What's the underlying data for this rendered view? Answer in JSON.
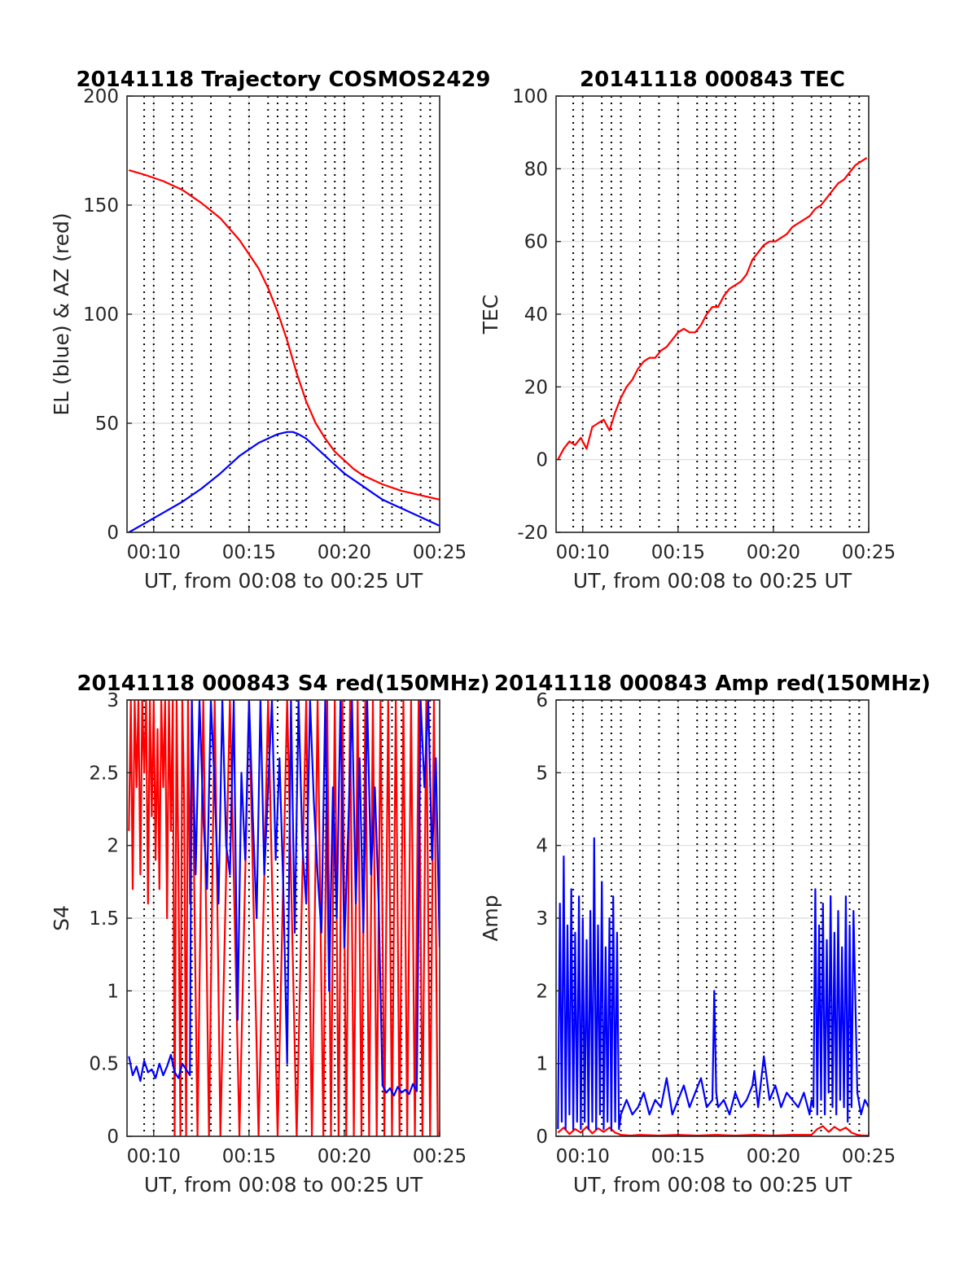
{
  "colors": {
    "blue": "#0000ff",
    "red": "#ff0000"
  },
  "chart_data": [
    {
      "type": "line",
      "title": "20141118 Trajectory COSMOS2429",
      "xlabel": "UT, from 00:08 to 00:25 UT",
      "ylabel": "EL (blue) & AZ (red)",
      "xlim": [
        8.6,
        25.0
      ],
      "ylim": [
        0,
        200
      ],
      "xticks": [
        10,
        15,
        20,
        25
      ],
      "xtick_labels": [
        "00:10",
        "00:15",
        "00:20",
        "00:25"
      ],
      "yticks": [
        0,
        50,
        100,
        150,
        200
      ],
      "ytick_labels": [
        "0",
        "50",
        "100",
        "150",
        "200"
      ],
      "dotted_vlines": [
        9.5,
        10.0,
        11.0,
        11.5,
        12.0,
        13.0,
        14.0,
        15.0,
        16.0,
        16.5,
        17.0,
        17.5,
        18.0,
        19.0,
        19.5,
        20.0,
        21.0,
        22.0,
        22.5,
        23.0,
        24.0,
        24.5
      ],
      "series": [
        {
          "color": "blue",
          "x": [
            8.7,
            9.5,
            10.5,
            11.5,
            12.5,
            13.5,
            14.5,
            15.5,
            16.5,
            17.0,
            17.3,
            17.6,
            18.0,
            18.5,
            19.0,
            19.5,
            20.0,
            20.5,
            21.0,
            21.5,
            22.0,
            22.5,
            23.0,
            23.5,
            24.0,
            24.5,
            25.0
          ],
          "y": [
            0,
            4,
            9,
            14,
            20,
            27,
            35,
            41,
            45,
            46,
            46,
            45,
            43,
            39,
            35,
            31,
            27,
            24,
            21,
            18,
            15,
            13,
            11,
            9,
            7,
            5,
            3
          ]
        },
        {
          "color": "red",
          "x": [
            8.7,
            9.5,
            10.5,
            11.5,
            12.5,
            13.5,
            14.5,
            15.5,
            16.0,
            16.5,
            17.0,
            17.5,
            18.0,
            18.5,
            19.0,
            19.5,
            20.0,
            20.5,
            21.0,
            22.0,
            23.0,
            24.0,
            25.0
          ],
          "y": [
            166,
            164,
            161,
            157,
            151,
            144,
            134,
            121,
            112,
            101,
            88,
            73,
            60,
            50,
            43,
            37,
            33,
            29,
            26,
            22,
            19,
            17,
            15
          ]
        }
      ]
    },
    {
      "type": "line",
      "title": "20141118 000843 TEC",
      "xlabel": "UT, from 00:08 to 00:25 UT",
      "ylabel": "TEC",
      "xlim": [
        8.6,
        25.0
      ],
      "ylim": [
        -20,
        100
      ],
      "xticks": [
        10,
        15,
        20,
        25
      ],
      "xtick_labels": [
        "00:10",
        "00:15",
        "00:20",
        "00:25"
      ],
      "yticks": [
        -20,
        0,
        20,
        40,
        60,
        80,
        100
      ],
      "ytick_labels": [
        "-20",
        "0",
        "20",
        "40",
        "60",
        "80",
        "100"
      ],
      "dotted_vlines": [
        9.5,
        10.0,
        11.0,
        11.5,
        12.0,
        13.0,
        14.0,
        15.0,
        16.0,
        16.5,
        17.0,
        17.5,
        18.0,
        19.0,
        19.5,
        20.0,
        21.0,
        22.0,
        22.5,
        23.0,
        24.0,
        24.5
      ],
      "series": [
        {
          "color": "red",
          "x": [
            8.7,
            9.0,
            9.3,
            9.6,
            9.9,
            10.2,
            10.5,
            10.8,
            11.1,
            11.4,
            11.7,
            12.0,
            12.3,
            12.6,
            12.9,
            13.2,
            13.5,
            13.8,
            14.1,
            14.4,
            14.7,
            15.0,
            15.3,
            15.6,
            15.9,
            16.2,
            16.5,
            16.8,
            17.1,
            17.4,
            17.7,
            18.0,
            18.3,
            18.6,
            18.9,
            19.2,
            19.5,
            19.8,
            20.1,
            20.4,
            20.7,
            21.0,
            21.3,
            21.6,
            21.9,
            22.2,
            22.5,
            22.8,
            23.1,
            23.4,
            23.7,
            24.0,
            24.3,
            24.6,
            24.9
          ],
          "y": [
            0,
            3,
            5,
            4,
            6,
            3,
            9,
            10,
            11,
            8,
            13,
            17,
            20,
            22,
            25,
            27,
            28,
            28,
            30,
            31,
            33,
            35,
            36,
            35,
            35,
            37,
            40,
            42,
            42,
            45,
            47,
            48,
            49,
            51,
            55,
            57,
            59,
            60,
            60,
            61,
            62,
            64,
            65,
            66,
            67,
            69,
            70,
            72,
            74,
            76,
            77,
            79,
            81,
            82,
            83
          ]
        }
      ]
    },
    {
      "type": "line",
      "title": "20141118 000843 S4 red(150MHz)",
      "xlabel": "UT, from 00:08 to 00:25 UT",
      "ylabel": "S4",
      "xlim": [
        8.6,
        25.0
      ],
      "ylim": [
        0,
        3
      ],
      "xticks": [
        10,
        15,
        20,
        25
      ],
      "xtick_labels": [
        "00:10",
        "00:15",
        "00:20",
        "00:25"
      ],
      "yticks": [
        0,
        0.5,
        1,
        1.5,
        2,
        2.5,
        3
      ],
      "ytick_labels": [
        "0",
        "0.5",
        "1",
        "1.5",
        "2",
        "2.5",
        "3"
      ],
      "dotted_vlines": [
        9.5,
        10.0,
        11.0,
        11.5,
        12.0,
        13.0,
        14.0,
        15.0,
        16.0,
        16.5,
        17.0,
        17.5,
        18.0,
        19.0,
        19.5,
        20.0,
        21.0,
        22.0,
        22.5,
        23.0,
        24.0,
        24.5
      ],
      "series": [
        {
          "color": "red",
          "x": [
            8.7,
            8.8,
            8.9,
            9.0,
            9.1,
            9.2,
            9.3,
            9.4,
            9.5,
            9.6,
            9.7,
            9.8,
            9.9,
            10.0,
            10.1,
            10.2,
            10.3,
            10.4,
            10.5,
            10.6,
            10.7,
            10.8,
            10.9,
            11.0,
            11.1,
            11.2,
            11.3,
            11.4,
            11.5,
            11.6,
            11.7,
            11.8,
            11.9,
            12.0,
            12.3,
            12.6,
            12.9,
            13.2,
            13.5,
            14.0,
            14.5,
            15.0,
            15.5,
            16.0,
            16.5,
            17.0,
            17.5,
            18.0,
            18.3,
            18.6,
            18.9,
            19.1,
            19.3,
            19.5,
            19.7,
            19.9,
            20.1,
            20.3,
            20.5,
            20.7,
            20.9,
            21.1,
            21.3,
            21.5,
            21.7,
            21.9,
            22.1,
            22.3,
            22.5,
            22.7,
            22.9,
            23.1,
            23.3,
            23.5,
            23.7,
            23.9,
            24.1,
            24.3,
            24.5,
            24.7,
            24.9
          ],
          "y": [
            2.1,
            3.0,
            1.7,
            3.0,
            2.4,
            3.0,
            1.8,
            3.0,
            2.5,
            3.0,
            1.6,
            3.0,
            2.2,
            3.0,
            1.9,
            2.8,
            1.7,
            3.0,
            2.4,
            3.0,
            1.5,
            3.0,
            2.1,
            3.0,
            0.0,
            3.0,
            1.8,
            0.0,
            3.0,
            2.3,
            0.0,
            3.0,
            1.6,
            3.0,
            0.0,
            3.0,
            0.0,
            3.0,
            0.0,
            3.0,
            0.0,
            3.0,
            0.0,
            3.0,
            0.0,
            3.0,
            0.0,
            3.0,
            0.0,
            3.0,
            0.0,
            3.0,
            0.0,
            3.0,
            0.0,
            3.0,
            0.0,
            3.0,
            0.0,
            3.0,
            0.0,
            3.0,
            0.0,
            3.0,
            0.0,
            3.0,
            0.0,
            3.0,
            0.0,
            3.0,
            0.0,
            3.0,
            0.0,
            3.0,
            0.0,
            3.0,
            0.0,
            3.0,
            0.0,
            3.0,
            0.0
          ]
        },
        {
          "color": "blue",
          "x": [
            8.7,
            8.9,
            9.1,
            9.3,
            9.5,
            9.7,
            9.9,
            10.1,
            10.3,
            10.5,
            10.7,
            10.9,
            11.1,
            11.3,
            11.5,
            11.7,
            11.9,
            12.0,
            12.2,
            12.4,
            12.6,
            12.8,
            13.0,
            13.2,
            13.4,
            13.6,
            13.8,
            14.0,
            14.2,
            14.4,
            14.6,
            14.8,
            15.0,
            15.2,
            15.4,
            15.6,
            15.8,
            16.0,
            16.2,
            16.4,
            16.6,
            16.8,
            17.0,
            17.2,
            17.4,
            17.6,
            17.8,
            18.0,
            18.2,
            18.4,
            18.6,
            18.8,
            19.0,
            19.2,
            19.4,
            19.6,
            19.8,
            20.0,
            20.2,
            20.4,
            20.6,
            20.8,
            21.0,
            21.2,
            21.4,
            21.6,
            21.8,
            22.0,
            22.2,
            22.4,
            22.6,
            22.8,
            23.0,
            23.2,
            23.4,
            23.6,
            23.8,
            24.0,
            24.2,
            24.4,
            24.6,
            24.8,
            25.0
          ],
          "y": [
            0.55,
            0.42,
            0.48,
            0.38,
            0.52,
            0.44,
            0.46,
            0.4,
            0.5,
            0.42,
            0.48,
            0.56,
            0.44,
            0.4,
            0.5,
            0.46,
            0.42,
            3.0,
            1.8,
            3.0,
            2.2,
            1.7,
            3.0,
            2.4,
            1.6,
            3.0,
            2.0,
            1.8,
            3.0,
            0.8,
            2.5,
            1.9,
            3.0,
            2.2,
            1.5,
            3.0,
            1.8,
            2.4,
            3.0,
            1.9,
            2.6,
            1.7,
            0.5,
            3.0,
            1.4,
            3.0,
            2.0,
            1.6,
            3.0,
            2.3,
            1.8,
            1.4,
            3.0,
            1.0,
            2.4,
            1.5,
            3.0,
            1.3,
            2.1,
            3.0,
            1.6,
            2.6,
            1.4,
            3.0,
            1.8,
            2.4,
            1.6,
            0.35,
            0.3,
            0.33,
            0.28,
            0.34,
            0.3,
            0.32,
            0.29,
            0.36,
            0.31,
            3.0,
            2.4,
            3.0,
            1.9,
            2.6,
            1.3
          ]
        }
      ]
    },
    {
      "type": "line",
      "title": "20141118 000843 Amp red(150MHz)",
      "xlabel": "UT, from 00:08 to 00:25 UT",
      "ylabel": "Amp",
      "xlim": [
        8.6,
        25.0
      ],
      "ylim": [
        0,
        6
      ],
      "xticks": [
        10,
        15,
        20,
        25
      ],
      "xtick_labels": [
        "00:10",
        "00:15",
        "00:20",
        "00:25"
      ],
      "yticks": [
        0,
        1,
        2,
        3,
        4,
        5,
        6
      ],
      "ytick_labels": [
        "0",
        "1",
        "2",
        "3",
        "4",
        "5",
        "6"
      ],
      "dotted_vlines": [
        9.5,
        10.0,
        11.0,
        11.5,
        12.0,
        13.0,
        14.0,
        15.0,
        16.0,
        16.5,
        17.0,
        17.5,
        18.0,
        19.0,
        19.5,
        20.0,
        21.0,
        22.0,
        22.5,
        23.0,
        24.0,
        24.5
      ],
      "series": [
        {
          "color": "red",
          "x": [
            8.7,
            9.0,
            9.3,
            9.6,
            9.9,
            10.2,
            10.5,
            10.8,
            11.1,
            11.4,
            11.7,
            12.0,
            12.5,
            13.0,
            14.0,
            15.0,
            16.0,
            17.0,
            18.0,
            19.0,
            20.0,
            21.0,
            22.0,
            22.3,
            22.6,
            22.9,
            23.2,
            23.5,
            23.8,
            24.1,
            24.4,
            24.7,
            25.0
          ],
          "y": [
            0.05,
            0.12,
            0.03,
            0.1,
            0.05,
            0.13,
            0.04,
            0.11,
            0.06,
            0.12,
            0.05,
            0.02,
            0.01,
            0.02,
            0.01,
            0.02,
            0.01,
            0.02,
            0.01,
            0.02,
            0.01,
            0.02,
            0.02,
            0.1,
            0.14,
            0.06,
            0.13,
            0.08,
            0.12,
            0.05,
            0.02,
            0.01,
            0.01
          ]
        },
        {
          "color": "blue",
          "x": [
            8.7,
            8.8,
            8.9,
            9.0,
            9.1,
            9.2,
            9.3,
            9.4,
            9.5,
            9.6,
            9.7,
            9.8,
            9.9,
            10.0,
            10.1,
            10.2,
            10.3,
            10.4,
            10.5,
            10.6,
            10.7,
            10.8,
            10.9,
            11.0,
            11.1,
            11.2,
            11.3,
            11.4,
            11.5,
            11.6,
            11.7,
            11.8,
            11.9,
            12.0,
            12.3,
            12.6,
            12.9,
            13.2,
            13.5,
            13.8,
            14.1,
            14.4,
            14.7,
            15.0,
            15.3,
            15.6,
            15.9,
            16.2,
            16.5,
            16.8,
            16.9,
            17.0,
            17.1,
            17.4,
            17.7,
            18.0,
            18.3,
            18.6,
            18.9,
            19.0,
            19.2,
            19.5,
            19.8,
            20.1,
            20.4,
            20.7,
            21.0,
            21.3,
            21.6,
            21.9,
            22.0,
            22.1,
            22.2,
            22.3,
            22.4,
            22.5,
            22.6,
            22.7,
            22.8,
            22.9,
            23.0,
            23.1,
            23.2,
            23.3,
            23.4,
            23.5,
            23.6,
            23.7,
            23.8,
            23.9,
            24.0,
            24.1,
            24.2,
            24.4,
            24.6,
            24.8,
            25.0
          ],
          "y": [
            0.1,
            3.2,
            0.2,
            3.85,
            0.1,
            2.9,
            0.3,
            3.4,
            0.1,
            2.8,
            0.2,
            3.3,
            0.1,
            3.0,
            0.2,
            2.7,
            0.1,
            3.1,
            0.2,
            4.1,
            0.1,
            2.9,
            0.3,
            3.5,
            0.1,
            2.6,
            0.2,
            3.0,
            0.1,
            3.3,
            0.2,
            2.8,
            0.1,
            0.3,
            0.5,
            0.3,
            0.4,
            0.6,
            0.3,
            0.5,
            0.4,
            0.8,
            0.3,
            0.5,
            0.7,
            0.4,
            0.6,
            0.8,
            0.4,
            0.5,
            2.0,
            0.6,
            0.4,
            0.5,
            0.3,
            0.6,
            0.4,
            0.5,
            0.7,
            0.9,
            0.4,
            1.1,
            0.5,
            0.7,
            0.4,
            0.6,
            0.5,
            0.4,
            0.6,
            0.3,
            0.5,
            0.4,
            3.4,
            0.3,
            2.9,
            0.5,
            3.2,
            0.3,
            2.7,
            0.6,
            3.3,
            0.4,
            2.8,
            0.3,
            3.1,
            0.5,
            2.6,
            0.4,
            3.3,
            0.2,
            2.9,
            0.4,
            3.1,
            0.6,
            0.3,
            0.5,
            0.4
          ]
        }
      ]
    }
  ]
}
